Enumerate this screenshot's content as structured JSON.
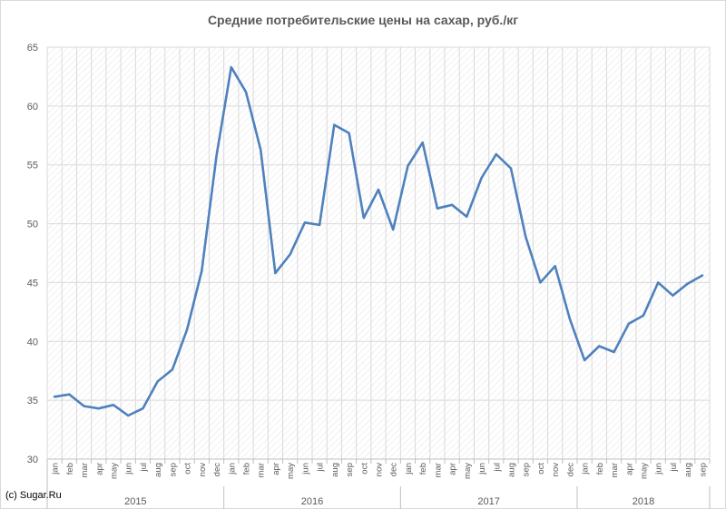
{
  "credit": "(c) Sugar.Ru",
  "chart_data": {
    "type": "line",
    "title": "Средние потребительские цены на сахар, руб./кг",
    "xlabel": "",
    "ylabel": "",
    "ylim": [
      30,
      65
    ],
    "yticks": [
      30,
      35,
      40,
      45,
      50,
      55,
      60,
      65
    ],
    "grid": true,
    "line_color": "#4f81bd",
    "categories": [
      "jan",
      "feb",
      "mar",
      "apr",
      "may",
      "jun",
      "jul",
      "aug",
      "sep",
      "oct",
      "nov",
      "dec",
      "jan",
      "feb",
      "mar",
      "apr",
      "may",
      "jun",
      "jul",
      "aug",
      "sep",
      "oct",
      "nov",
      "dec",
      "jan",
      "feb",
      "mar",
      "apr",
      "may",
      "jun",
      "jul",
      "aug",
      "sep",
      "oct",
      "nov",
      "dec",
      "jan",
      "feb",
      "mar",
      "apr",
      "may",
      "jun",
      "jul",
      "aug",
      "sep"
    ],
    "groups": [
      {
        "label": "2015",
        "count": 12
      },
      {
        "label": "2016",
        "count": 12
      },
      {
        "label": "2017",
        "count": 12
      },
      {
        "label": "2018",
        "count": 9
      }
    ],
    "series": [
      {
        "values": [
          35.3,
          35.5,
          34.5,
          34.3,
          34.6,
          33.7,
          34.3,
          36.6,
          37.6,
          41.0,
          46.0,
          55.8,
          63.3,
          61.2,
          56.3,
          45.8,
          47.4,
          50.1,
          49.9,
          58.4,
          57.7,
          50.5,
          52.9,
          49.5,
          54.9,
          56.9,
          51.3,
          51.6,
          50.6,
          53.9,
          55.9,
          54.7,
          48.9,
          45.0,
          46.4,
          41.9,
          38.4,
          39.6,
          39.1,
          41.5,
          42.2,
          45.0,
          43.9,
          44.9,
          45.6
        ]
      }
    ]
  }
}
